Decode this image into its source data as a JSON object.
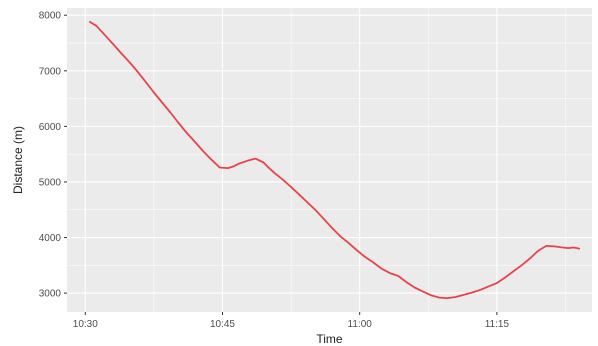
{
  "chart_data": {
    "type": "line",
    "title": "",
    "xlabel": "Time",
    "ylabel": "Distance (m)",
    "x_ticks": [
      "10:30",
      "10:45",
      "11:00",
      "11:15"
    ],
    "x_tick_minutes": [
      630,
      645,
      660,
      675
    ],
    "xlim": [
      "10:28",
      "11:25"
    ],
    "xlim_minutes": [
      628.0,
      685.4
    ],
    "y_ticks": [
      3000,
      4000,
      5000,
      6000,
      7000,
      8000
    ],
    "ylim": [
      2660,
      8130
    ],
    "grid": true,
    "legend": "none",
    "colors": {
      "panel": "#ebebeb",
      "grid": "#ffffff",
      "line": "#e8434a"
    },
    "series": [
      {
        "x": [
          "10:30:30",
          "10:31:12",
          "10:32:06",
          "10:33:00",
          "10:33:54",
          "10:34:48",
          "10:35:42",
          "10:36:36",
          "10:37:30",
          "10:38:24",
          "10:39:18",
          "10:40:12",
          "10:41:06",
          "10:42:00",
          "10:42:54",
          "10:43:48",
          "10:44:42",
          "10:45:36",
          "10:46:12",
          "10:46:48",
          "10:47:42",
          "10:48:36",
          "10:49:30",
          "10:50:06",
          "10:50:42",
          "10:51:36",
          "10:52:30",
          "10:53:24",
          "10:54:18",
          "10:55:12",
          "10:56:06",
          "10:57:00",
          "10:57:54",
          "10:58:48",
          "10:59:42",
          "11:00:36",
          "11:01:30",
          "11:02:24",
          "11:03:18",
          "11:04:12",
          "11:05:06",
          "11:06:00",
          "11:06:54",
          "11:07:48",
          "11:08:42",
          "11:09:36",
          "11:10:30",
          "11:11:24",
          "11:12:18",
          "11:13:12",
          "11:14:06",
          "11:15:00",
          "11:15:54",
          "11:16:48",
          "11:17:42",
          "11:18:36",
          "11:19:30",
          "11:20:24",
          "11:21:18",
          "11:22:12",
          "11:22:48",
          "11:23:24",
          "11:24:00"
        ],
        "x_minutes": [
          630.5,
          631.2,
          632.1,
          633.0,
          633.9,
          634.8,
          635.7,
          636.6,
          637.5,
          638.4,
          639.3,
          640.2,
          641.1,
          642.0,
          642.9,
          643.8,
          644.7,
          645.6,
          646.2,
          646.8,
          647.7,
          648.6,
          649.5,
          650.1,
          650.7,
          651.6,
          652.5,
          653.4,
          654.3,
          655.2,
          656.1,
          657.0,
          657.9,
          658.8,
          659.7,
          660.6,
          661.5,
          662.4,
          663.3,
          664.2,
          665.1,
          666.0,
          666.9,
          667.8,
          668.7,
          669.6,
          670.5,
          671.4,
          672.3,
          673.2,
          674.1,
          675.0,
          675.9,
          676.8,
          677.7,
          678.6,
          679.5,
          680.4,
          681.3,
          682.2,
          682.8,
          683.4,
          684.0
        ],
        "values": [
          7880,
          7810,
          7650,
          7490,
          7320,
          7160,
          6990,
          6800,
          6610,
          6430,
          6250,
          6060,
          5880,
          5720,
          5550,
          5400,
          5260,
          5250,
          5280,
          5330,
          5380,
          5420,
          5350,
          5250,
          5160,
          5040,
          4910,
          4770,
          4630,
          4490,
          4330,
          4170,
          4020,
          3900,
          3770,
          3650,
          3550,
          3440,
          3360,
          3310,
          3200,
          3100,
          3030,
          2960,
          2920,
          2910,
          2930,
          2970,
          3010,
          3060,
          3120,
          3180,
          3280,
          3390,
          3500,
          3620,
          3760,
          3850,
          3840,
          3820,
          3810,
          3820,
          3800
        ]
      }
    ]
  }
}
